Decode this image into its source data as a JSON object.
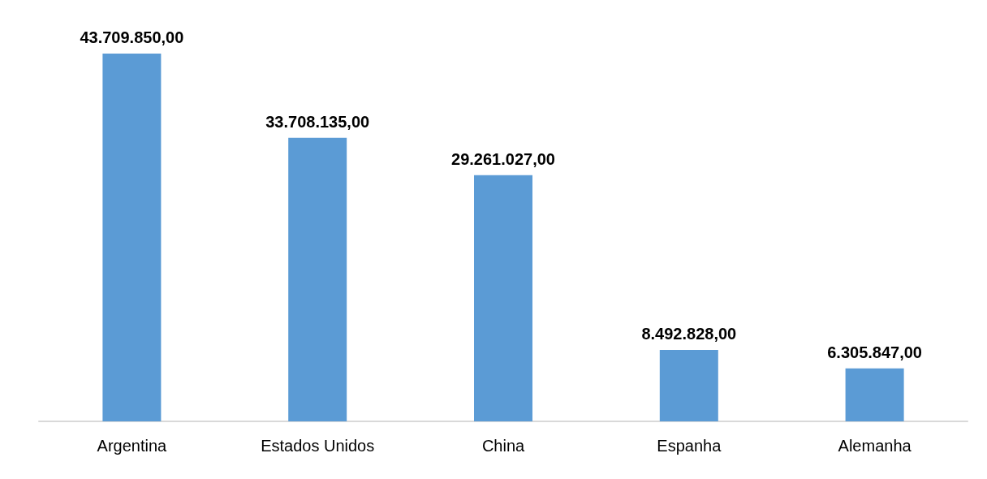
{
  "chart_data": {
    "type": "bar",
    "categories": [
      "Argentina",
      "Estados Unidos",
      "China",
      "Espanha",
      "Alemanha"
    ],
    "values": [
      43709850,
      33708135,
      29261027,
      8492828,
      6305847
    ],
    "value_labels": [
      "43.709.850,00",
      "33.708.135,00",
      "29.261.027,00",
      "8.492.828,00",
      "6.305.847,00"
    ],
    "color": "#5b9bd5"
  }
}
